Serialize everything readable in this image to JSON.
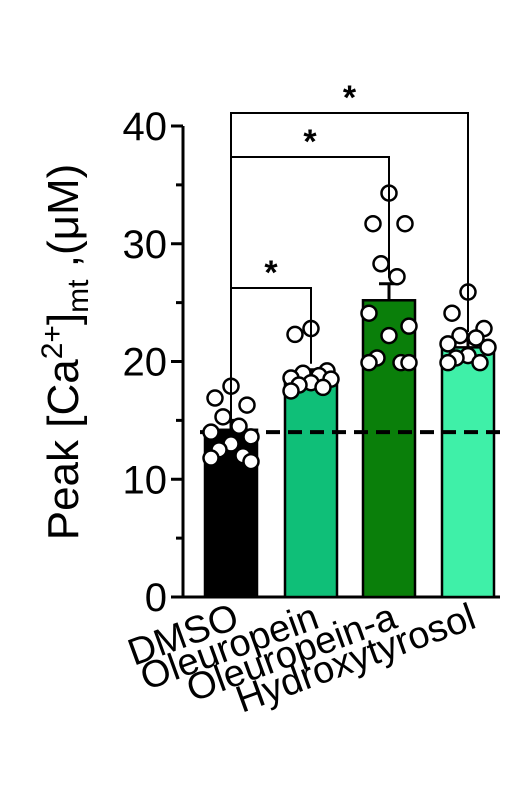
{
  "chart_data": {
    "type": "bar",
    "y_label": {
      "prefix": "Peak [Ca",
      "superscript": "2+",
      "mid": "]",
      "subscript": "mt",
      "suffix": " ,(μM)"
    },
    "categories": [
      "DMSO",
      "Oleuropein",
      "Oleuropein-a",
      "Hydroxytyrosol"
    ],
    "values": [
      14.2,
      18.8,
      25.2,
      21.2
    ],
    "errors": [
      0.8,
      0.5,
      1.4,
      0.8
    ],
    "colors": [
      "#000000",
      "#0fbf78",
      "#0a7f0a",
      "#3ff0a8"
    ],
    "points": [
      [
        17.9,
        16.9,
        16.3,
        15.3,
        14.5,
        14.0,
        13.6,
        13.0,
        12.5,
        12.0,
        11.8,
        11.5
      ],
      [
        22.8,
        22.3,
        19.2,
        19.0,
        18.8,
        18.6,
        18.5,
        18.2,
        18.0,
        17.8,
        17.5
      ],
      [
        34.3,
        31.7,
        31.7,
        28.3,
        27.2,
        24.1,
        23.0,
        22.2,
        20.3,
        19.9,
        19.9,
        19.9
      ],
      [
        25.9,
        24.1,
        22.8,
        22.2,
        22.0,
        21.5,
        21.2,
        20.5,
        20.3,
        19.9,
        19.9
      ]
    ],
    "reference_line": 14,
    "significance": [
      {
        "from": 0,
        "to": 1,
        "label": "*"
      },
      {
        "from": 0,
        "to": 2,
        "label": "*"
      },
      {
        "from": 0,
        "to": 3,
        "label": "*"
      }
    ],
    "ylim": [
      0,
      40
    ],
    "yticks": [
      0,
      10,
      20,
      30,
      40
    ],
    "minor_yticks": [
      5,
      15,
      25,
      35
    ]
  }
}
